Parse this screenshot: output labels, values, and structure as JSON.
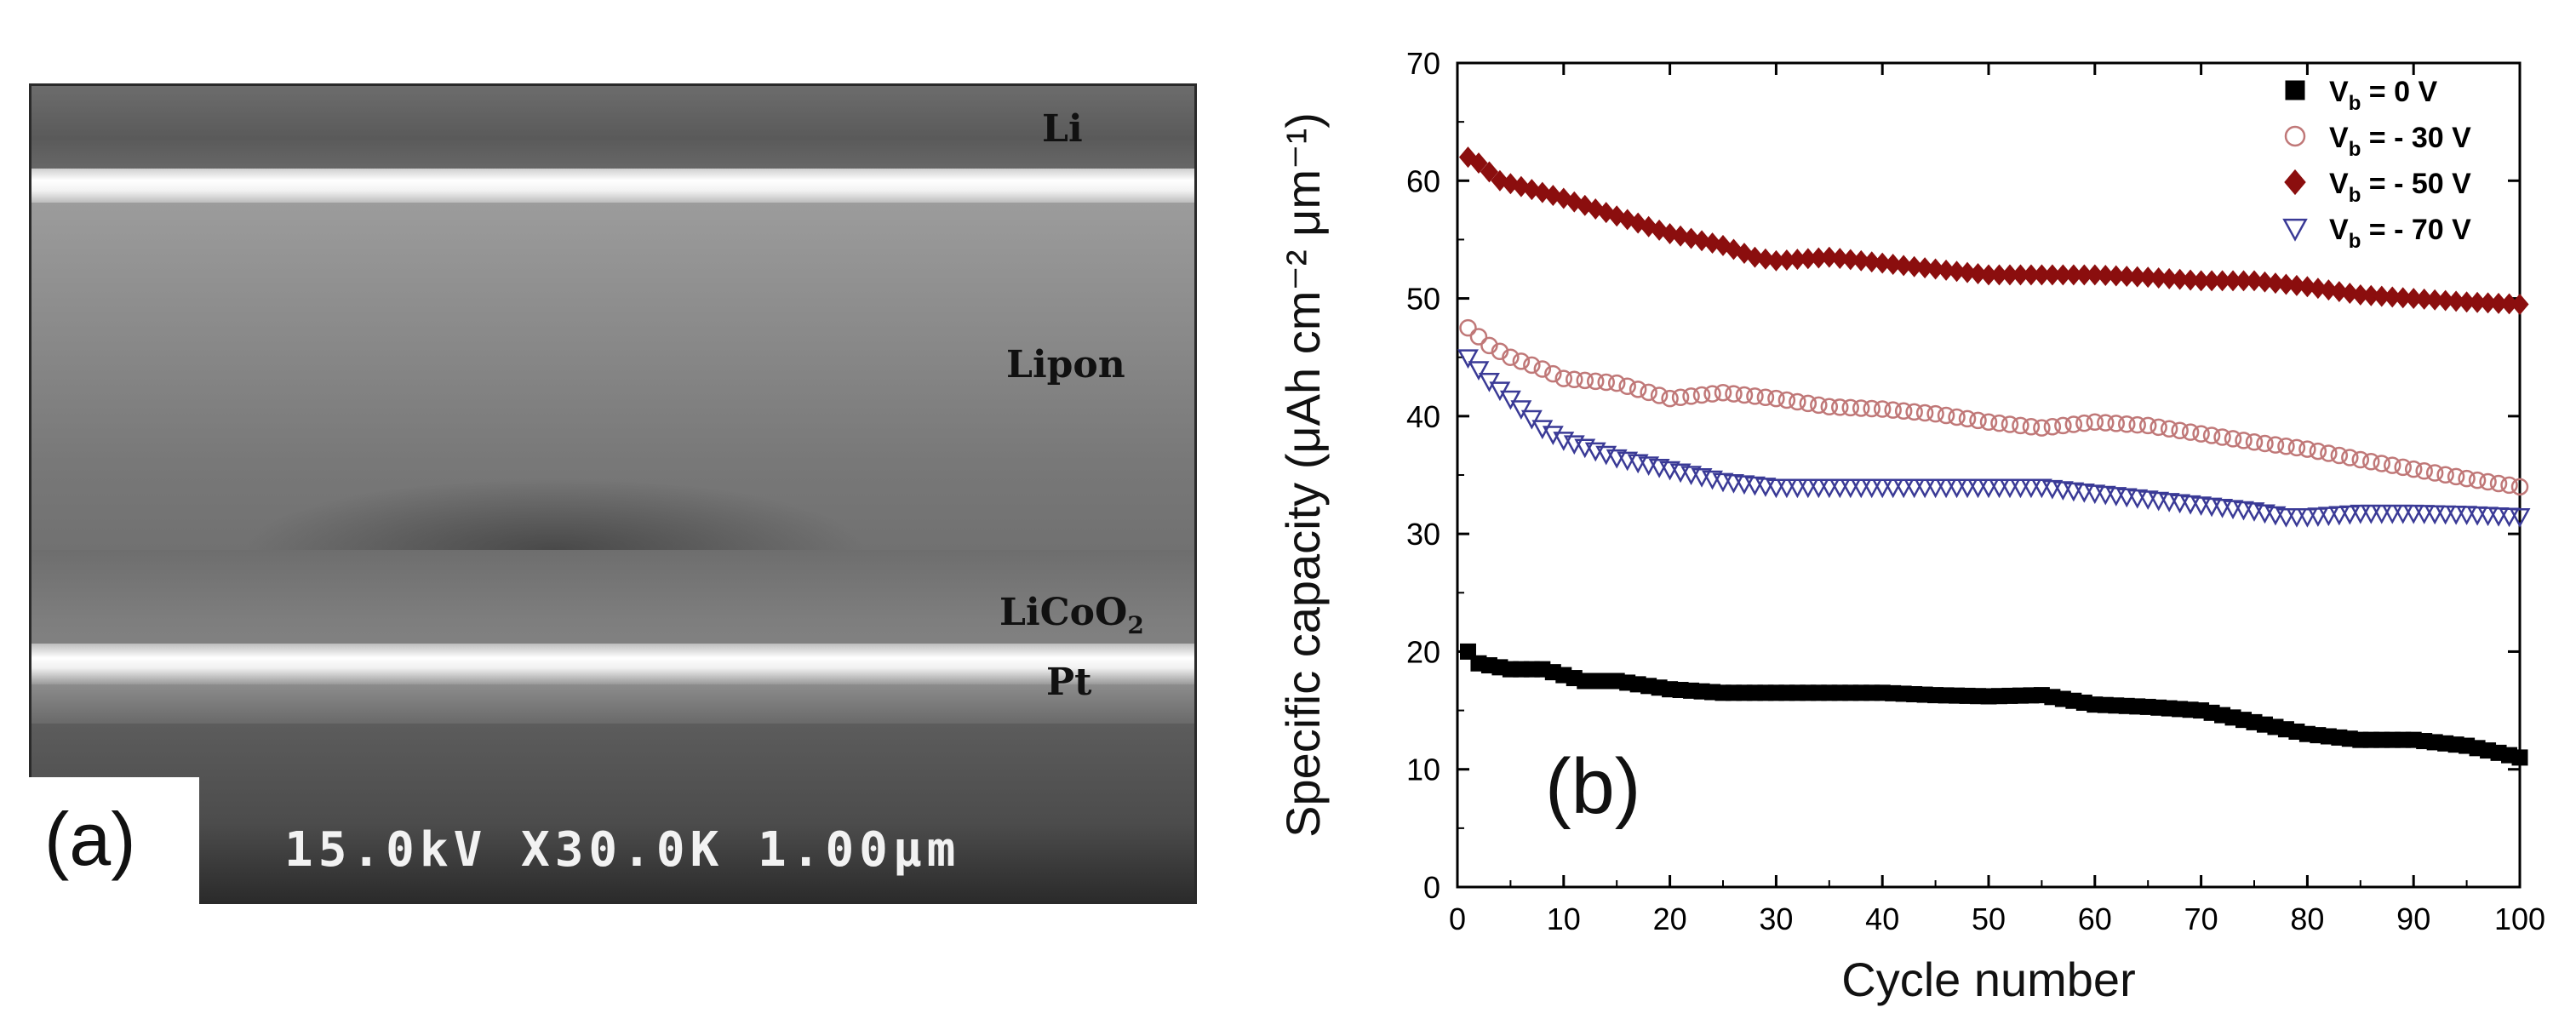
{
  "panel_a": {
    "label": "(a)",
    "layers": {
      "li": "Li",
      "lipon": "Lipon",
      "licoo2_base": "LiCoO",
      "licoo2_sub": "2",
      "pt": "Pt"
    },
    "scale_bar": "15.0kV X30.0K 1.00μm",
    "colors": {
      "glow": "#ffffff",
      "layer_dark": "#4a4a4a"
    }
  },
  "chart_data": {
    "type": "scatter",
    "panel_label": "(b)",
    "xlabel": "Cycle number",
    "ylabel": "Specific capacity (μAh cm⁻² μm⁻¹)",
    "xlim": [
      0,
      100
    ],
    "ylim": [
      0,
      70
    ],
    "xticks": [
      0,
      10,
      20,
      30,
      40,
      50,
      60,
      70,
      80,
      90,
      100
    ],
    "yticks": [
      0,
      10,
      20,
      30,
      40,
      50,
      60,
      70
    ],
    "legend_position": "top-right",
    "series": [
      {
        "name": "Vb = 0 V",
        "legend_main": "V",
        "legend_sub": "b",
        "legend_rest": " = 0 V",
        "marker": "square",
        "fill": "#000000",
        "stroke": "#000000",
        "keypoints": [
          [
            1,
            20
          ],
          [
            2,
            19
          ],
          [
            5,
            18.5
          ],
          [
            8,
            18.5
          ],
          [
            10,
            18
          ],
          [
            12,
            17.5
          ],
          [
            15,
            17.5
          ],
          [
            20,
            16.8
          ],
          [
            25,
            16.5
          ],
          [
            30,
            16.5
          ],
          [
            35,
            16.5
          ],
          [
            40,
            16.5
          ],
          [
            45,
            16.3
          ],
          [
            50,
            16.2
          ],
          [
            55,
            16.3
          ],
          [
            60,
            15.5
          ],
          [
            65,
            15.3
          ],
          [
            70,
            15
          ],
          [
            75,
            14
          ],
          [
            80,
            13
          ],
          [
            85,
            12.5
          ],
          [
            90,
            12.5
          ],
          [
            95,
            12
          ],
          [
            100,
            11
          ]
        ]
      },
      {
        "name": "Vb = - 30 V",
        "legend_main": "V",
        "legend_sub": "b",
        "legend_rest": " = - 30 V",
        "marker": "circle",
        "fill": "none",
        "stroke": "#c07878",
        "keypoints": [
          [
            1,
            47.5
          ],
          [
            3,
            46
          ],
          [
            5,
            45
          ],
          [
            8,
            44
          ],
          [
            10,
            43.2
          ],
          [
            15,
            42.8
          ],
          [
            20,
            41.5
          ],
          [
            25,
            42
          ],
          [
            30,
            41.5
          ],
          [
            35,
            40.8
          ],
          [
            40,
            40.6
          ],
          [
            45,
            40.2
          ],
          [
            50,
            39.5
          ],
          [
            55,
            39
          ],
          [
            60,
            39.5
          ],
          [
            65,
            39.2
          ],
          [
            70,
            38.5
          ],
          [
            75,
            37.8
          ],
          [
            80,
            37.2
          ],
          [
            85,
            36.3
          ],
          [
            90,
            35.5
          ],
          [
            95,
            34.7
          ],
          [
            100,
            34
          ]
        ]
      },
      {
        "name": "Vb = - 50 V",
        "legend_main": "V",
        "legend_sub": "b",
        "legend_rest": " = - 50 V",
        "marker": "diamond",
        "fill": "#8b0e0e",
        "stroke": "#8b0e0e",
        "keypoints": [
          [
            1,
            62
          ],
          [
            2,
            61.5
          ],
          [
            4,
            60
          ],
          [
            6,
            59.5
          ],
          [
            10,
            58.5
          ],
          [
            15,
            57
          ],
          [
            20,
            55.5
          ],
          [
            25,
            54.5
          ],
          [
            28,
            53.5
          ],
          [
            30,
            53.2
          ],
          [
            35,
            53.5
          ],
          [
            40,
            53
          ],
          [
            45,
            52.5
          ],
          [
            50,
            52
          ],
          [
            55,
            52
          ],
          [
            60,
            52
          ],
          [
            65,
            51.8
          ],
          [
            70,
            51.5
          ],
          [
            75,
            51.5
          ],
          [
            80,
            51
          ],
          [
            85,
            50.3
          ],
          [
            90,
            50
          ],
          [
            95,
            49.7
          ],
          [
            100,
            49.5
          ]
        ]
      },
      {
        "name": "Vb = - 70 V",
        "legend_main": "V",
        "legend_sub": "b",
        "legend_rest": " = - 70 V",
        "marker": "triangle-down",
        "fill": "none",
        "stroke": "#3a3a96",
        "keypoints": [
          [
            1,
            45
          ],
          [
            3,
            43
          ],
          [
            5,
            41.5
          ],
          [
            8,
            39
          ],
          [
            10,
            38
          ],
          [
            15,
            36.5
          ],
          [
            20,
            35.5
          ],
          [
            25,
            34.5
          ],
          [
            30,
            34
          ],
          [
            35,
            34
          ],
          [
            40,
            34
          ],
          [
            45,
            34
          ],
          [
            50,
            34
          ],
          [
            55,
            34
          ],
          [
            60,
            33.5
          ],
          [
            65,
            33
          ],
          [
            70,
            32.5
          ],
          [
            75,
            32
          ],
          [
            78,
            31.5
          ],
          [
            80,
            31.5
          ],
          [
            85,
            31.8
          ],
          [
            90,
            31.8
          ],
          [
            95,
            31.7
          ],
          [
            100,
            31.5
          ]
        ]
      }
    ]
  }
}
